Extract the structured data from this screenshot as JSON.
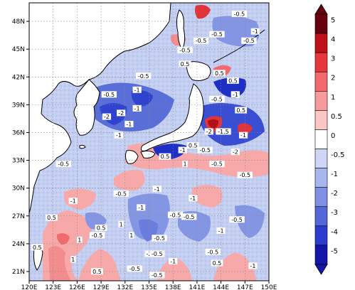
{
  "map": {
    "lon_ticks": [
      "120E",
      "123E",
      "126E",
      "129E",
      "132E",
      "135E",
      "138E",
      "141E",
      "144E",
      "147E",
      "150E"
    ],
    "lat_ticks": [
      "21N",
      "24N",
      "27N",
      "30N",
      "33N",
      "36N",
      "39N",
      "42N",
      "45N",
      "48N"
    ],
    "lon_range": [
      120,
      150
    ],
    "lat_range": [
      20,
      50
    ],
    "grid": "dotted",
    "colors": {
      "land": "#ffffff",
      "ocean_base": "#c7d2f2",
      "coast": "#000000"
    }
  },
  "colorbar": {
    "labels": [
      "5",
      "4",
      "3",
      "2",
      "1",
      "0.5",
      "0",
      "-0.5",
      "-1",
      "-2",
      "-3",
      "-4",
      "-5"
    ],
    "colors": [
      "#67000d",
      "#c0101a",
      "#e8363c",
      "#f36a6e",
      "#f79a9c",
      "#fbc6c6",
      "#ffffff",
      "#cfd6f5",
      "#a8b6ee",
      "#7e8fe4",
      "#5467d9",
      "#2b3ccf",
      "#1316a8"
    ]
  },
  "contour_labels": [
    {
      "text": "-0.5",
      "lon": 146.3,
      "lat": 48.7
    },
    {
      "text": "-0.5",
      "lon": 143.5,
      "lat": 46.5
    },
    {
      "text": "-0.5",
      "lon": 147.5,
      "lat": 45.8
    },
    {
      "text": "-1",
      "lon": 148.3,
      "lat": 46.8
    },
    {
      "text": "-0.5",
      "lon": 139.5,
      "lat": 44.8
    },
    {
      "text": "-0.5",
      "lon": 141.5,
      "lat": 45.8
    },
    {
      "text": "0.5",
      "lon": 139.5,
      "lat": 43.3
    },
    {
      "text": "0.5",
      "lon": 143.8,
      "lat": 42.3
    },
    {
      "text": "0.5",
      "lon": 145.5,
      "lat": 41.5
    },
    {
      "text": "-0.5",
      "lon": 134.3,
      "lat": 42.0
    },
    {
      "text": "-0.5",
      "lon": 130.0,
      "lat": 40.0
    },
    {
      "text": "-1",
      "lon": 133.5,
      "lat": 40.5
    },
    {
      "text": "-0.5",
      "lon": 143.5,
      "lat": 39.5
    },
    {
      "text": "-1",
      "lon": 145.8,
      "lat": 40.0
    },
    {
      "text": "0.5",
      "lon": 146.5,
      "lat": 38.3
    },
    {
      "text": "-2",
      "lon": 129.7,
      "lat": 37.6
    },
    {
      "text": "-2",
      "lon": 131.5,
      "lat": 38.0
    },
    {
      "text": "-1",
      "lon": 133.5,
      "lat": 38.5
    },
    {
      "text": "-1",
      "lon": 132.5,
      "lat": 36.8
    },
    {
      "text": "-1",
      "lon": 131.2,
      "lat": 35.6
    },
    {
      "text": "-2",
      "lon": 142.5,
      "lat": 36.0
    },
    {
      "text": "-1.5",
      "lon": 144.3,
      "lat": 36.0
    },
    {
      "text": "-1",
      "lon": 146.8,
      "lat": 35.6
    },
    {
      "text": "0.5",
      "lon": 140.5,
      "lat": 34.5
    },
    {
      "text": "-0.5",
      "lon": 142.0,
      "lat": 34.0
    },
    {
      "text": "-1",
      "lon": 139.2,
      "lat": 34.0
    },
    {
      "text": "0.5",
      "lon": 137.0,
      "lat": 33.3
    },
    {
      "text": "1",
      "lon": 139.5,
      "lat": 32.5
    },
    {
      "text": "-2",
      "lon": 145.8,
      "lat": 33.8
    },
    {
      "text": "-0.5",
      "lon": 124.3,
      "lat": 32.5
    },
    {
      "text": "-0.5",
      "lon": 143.5,
      "lat": 32.5
    },
    {
      "text": "-0.5",
      "lon": 147.0,
      "lat": 31.3
    },
    {
      "text": "-1",
      "lon": 136.0,
      "lat": 29.8
    },
    {
      "text": "-1",
      "lon": 140.5,
      "lat": 28.8
    },
    {
      "text": "-0.5",
      "lon": 131.5,
      "lat": 29.3
    },
    {
      "text": "-1",
      "lon": 125.5,
      "lat": 28.5
    },
    {
      "text": "0.5",
      "lon": 122.8,
      "lat": 26.7
    },
    {
      "text": "-1",
      "lon": 134.0,
      "lat": 27.8
    },
    {
      "text": "-0.5",
      "lon": 138.3,
      "lat": 27.0
    },
    {
      "text": "-0.5",
      "lon": 140.0,
      "lat": 26.8
    },
    {
      "text": "1",
      "lon": 131.5,
      "lat": 26.0
    },
    {
      "text": "-0.5",
      "lon": 146.0,
      "lat": 26.5
    },
    {
      "text": "0.5",
      "lon": 129.0,
      "lat": 25.6
    },
    {
      "text": "-0.5",
      "lon": 128.5,
      "lat": 24.8
    },
    {
      "text": "1",
      "lon": 132.8,
      "lat": 24.8
    },
    {
      "text": "-0.5",
      "lon": 136.3,
      "lat": 24.5
    },
    {
      "text": "-1",
      "lon": 144.0,
      "lat": 25.3
    },
    {
      "text": "1",
      "lon": 126.3,
      "lat": 24.3
    },
    {
      "text": "-2",
      "lon": 135.0,
      "lat": 22.8
    },
    {
      "text": "0.5",
      "lon": 121.0,
      "lat": 23.5
    },
    {
      "text": "-0.5",
      "lon": 136.0,
      "lat": 22.8
    },
    {
      "text": "-0.5",
      "lon": 143.0,
      "lat": 23.0
    },
    {
      "text": "1",
      "lon": 125.5,
      "lat": 22.2
    },
    {
      "text": "-1",
      "lon": 138.0,
      "lat": 22.0
    },
    {
      "text": "-0.5",
      "lon": 133.2,
      "lat": 21.2
    },
    {
      "text": "0.5",
      "lon": 128.5,
      "lat": 20.9
    },
    {
      "text": "-0.5",
      "lon": 136.0,
      "lat": 20.5
    },
    {
      "text": "0.5",
      "lon": 143.5,
      "lat": 21.8
    },
    {
      "text": "-1",
      "lon": 148.0,
      "lat": 21.5
    }
  ]
}
